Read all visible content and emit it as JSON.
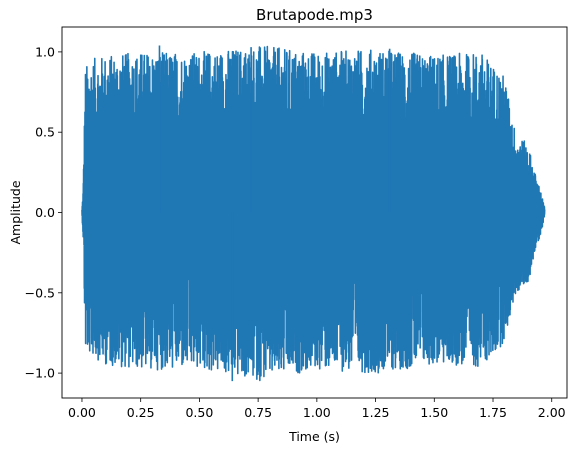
{
  "chart_data": {
    "type": "line",
    "title": "Brutapode.mp3",
    "xlabel": "Time (s)",
    "ylabel": "Amplitude",
    "xlim": [
      -0.085,
      2.065
    ],
    "ylim": [
      -1.155,
      1.155
    ],
    "xticks": [
      0.0,
      0.25,
      0.5,
      0.75,
      1.0,
      1.25,
      1.5,
      1.75,
      2.0
    ],
    "xtick_labels": [
      "0.00",
      "0.25",
      "0.50",
      "0.75",
      "1.00",
      "1.25",
      "1.50",
      "1.75",
      "2.00"
    ],
    "yticks": [
      -1.0,
      -0.5,
      0.0,
      0.5,
      1.0
    ],
    "ytick_labels": [
      "−1.0",
      "−0.5",
      "0.0",
      "0.5",
      "1.0"
    ],
    "grid": false,
    "series": [
      {
        "color": "#1f77b4",
        "duration_s": 1.97,
        "peak_max": 1.04,
        "peak_min": -1.05,
        "envelope": {
          "t": [
            0.0,
            0.005,
            0.01,
            0.015,
            0.02,
            0.05,
            0.1,
            0.25,
            0.5,
            0.75,
            1.0,
            1.25,
            1.5,
            1.7,
            1.75,
            1.8,
            1.83,
            1.85,
            1.88,
            1.9,
            1.93,
            1.95,
            1.97
          ],
          "upper": [
            0.02,
            0.15,
            0.55,
            0.9,
            0.92,
            0.96,
            0.98,
            1.0,
            1.0,
            1.04,
            1.0,
            1.02,
            0.98,
            1.0,
            0.92,
            0.85,
            0.6,
            0.48,
            0.45,
            0.42,
            0.24,
            0.15,
            0.03
          ],
          "lower": [
            -0.02,
            -0.15,
            -0.55,
            -0.88,
            -0.88,
            -0.9,
            -0.95,
            -0.98,
            -0.98,
            -1.05,
            -0.98,
            -1.0,
            -0.95,
            -0.96,
            -0.9,
            -0.8,
            -0.6,
            -0.5,
            -0.47,
            -0.44,
            -0.24,
            -0.15,
            -0.03
          ]
        }
      }
    ]
  }
}
